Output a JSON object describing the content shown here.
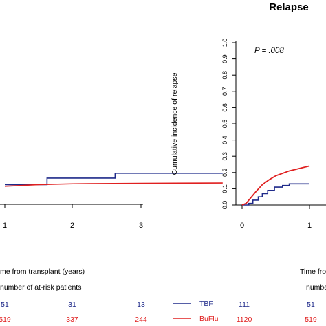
{
  "colors": {
    "tbf": "#1f2a8a",
    "buflu": "#e02020",
    "axis": "#000000"
  },
  "left_panel": {
    "x_ticks": [
      "1",
      "2",
      "3"
    ],
    "xlabel": "me from transplant (years)",
    "at_risk_title": "number of at-risk patients",
    "at_risk": {
      "tbf": [
        "51",
        "31",
        "13"
      ],
      "buflu": [
        "519",
        "337",
        "244"
      ]
    }
  },
  "right_panel": {
    "title": "Relapse",
    "p_value": "P = .008",
    "ylabel": "Cumulative incidence of relapse",
    "y_ticks": [
      "0.0",
      "0.1",
      "0.2",
      "0.3",
      "0.4",
      "0.5",
      "0.6",
      "0.7",
      "0.8",
      "0.9",
      "1.0"
    ],
    "x_ticks": [
      "0",
      "1"
    ],
    "xlabel": "Time fro",
    "at_risk_title": "numbe",
    "legend": {
      "tbf": "TBF",
      "buflu": "BuFlu"
    },
    "at_risk": {
      "tbf": [
        "111",
        "51"
      ],
      "buflu": [
        "1120",
        "519"
      ]
    }
  },
  "chart_data": [
    {
      "type": "line",
      "title": "",
      "xlabel": "me from transplant (years)",
      "ylabel": "",
      "xlim": [
        0,
        3.2
      ],
      "ylim": [
        0,
        1
      ],
      "series": [
        {
          "name": "TBF",
          "color": "#1f2a8a",
          "x": [
            0.0,
            0.57,
            0.62,
            1.62,
            3.2
          ],
          "y": [
            0.12,
            0.12,
            0.16,
            0.19,
            0.19
          ]
        },
        {
          "name": "BuFlu",
          "color": "#e02020",
          "x": [
            0.0,
            0.5,
            1.0,
            2.0,
            3.2
          ],
          "y": [
            0.11,
            0.12,
            0.125,
            0.128,
            0.13
          ]
        }
      ]
    },
    {
      "type": "line",
      "title": "Relapse",
      "xlabel": "Time fro",
      "ylabel": "Cumulative incidence of relapse",
      "xlim": [
        0,
        1
      ],
      "ylim": [
        0,
        1
      ],
      "series": [
        {
          "name": "TBF",
          "color": "#1f2a8a",
          "x": [
            0.0,
            0.1,
            0.16,
            0.24,
            0.3,
            0.38,
            0.48,
            0.6,
            0.7,
            0.85,
            1.0
          ],
          "y": [
            0.0,
            0.01,
            0.03,
            0.05,
            0.07,
            0.09,
            0.11,
            0.12,
            0.13,
            0.13,
            0.13
          ]
        },
        {
          "name": "BuFlu",
          "color": "#e02020",
          "x": [
            0.0,
            0.06,
            0.12,
            0.2,
            0.3,
            0.4,
            0.5,
            0.6,
            0.7,
            0.8,
            0.9,
            1.0
          ],
          "y": [
            0.0,
            0.01,
            0.04,
            0.08,
            0.125,
            0.155,
            0.18,
            0.195,
            0.21,
            0.22,
            0.23,
            0.24
          ]
        }
      ]
    }
  ]
}
